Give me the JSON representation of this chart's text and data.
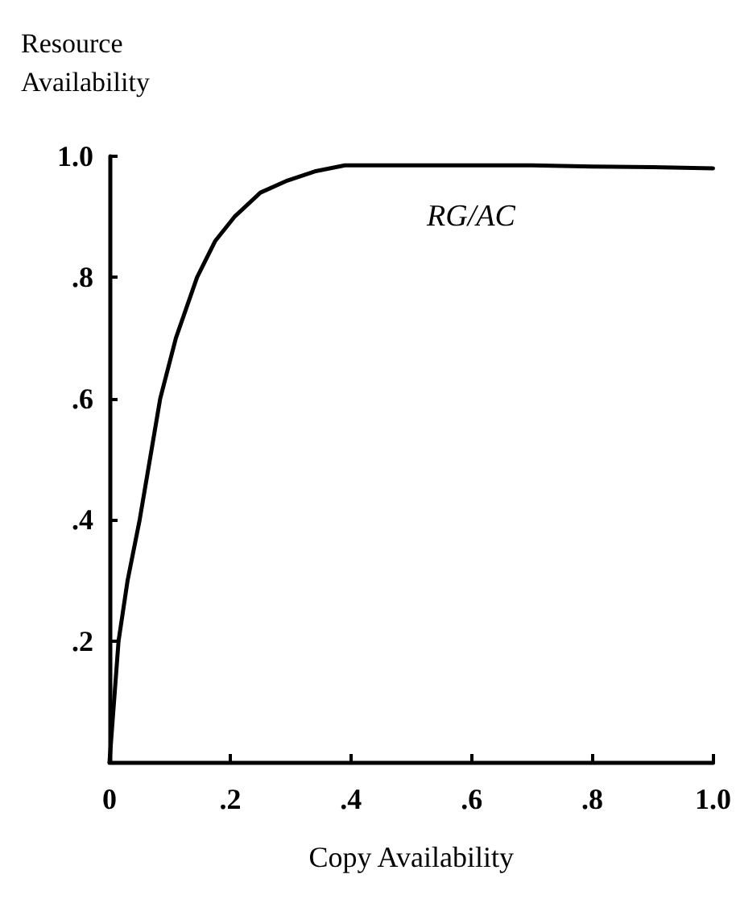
{
  "chart_data": {
    "type": "line",
    "xlabel": "Copy Availability",
    "ylabel": "Resource\nAvailability",
    "xlim": [
      0,
      1
    ],
    "ylim": [
      0,
      1
    ],
    "xticks": [
      {
        "value": 0,
        "label": "0"
      },
      {
        "value": 0.2,
        "label": ".2"
      },
      {
        "value": 0.4,
        "label": ".4"
      },
      {
        "value": 0.6,
        "label": ".6"
      },
      {
        "value": 0.8,
        "label": ".8"
      },
      {
        "value": 1,
        "label": "1.0"
      }
    ],
    "yticks": [
      {
        "value": 0.2,
        "label": ".2"
      },
      {
        "value": 0.4,
        "label": ".4"
      },
      {
        "value": 0.6,
        "label": ".6"
      },
      {
        "value": 0.8,
        "label": ".8"
      },
      {
        "value": 1,
        "label": "1.0"
      }
    ],
    "grid": false,
    "marker": "none",
    "line_style": "solid",
    "series": [
      {
        "color": "#000000",
        "x": [
          0,
          0.015,
          0.03,
          0.05,
          0.067,
          0.084,
          0.11,
          0.145,
          0.175,
          0.207,
          0.25,
          0.295,
          0.34,
          0.39,
          0.5,
          0.6,
          0.7,
          0.8,
          0.9,
          1.0
        ],
        "values": [
          0,
          0.2,
          0.3,
          0.4,
          0.5,
          0.6,
          0.7,
          0.8,
          0.86,
          0.9,
          0.94,
          0.96,
          0.975,
          0.985,
          0.985,
          0.985,
          0.985,
          0.983,
          0.982,
          0.98
        ]
      }
    ],
    "annotations": [
      "RG/AC"
    ]
  }
}
